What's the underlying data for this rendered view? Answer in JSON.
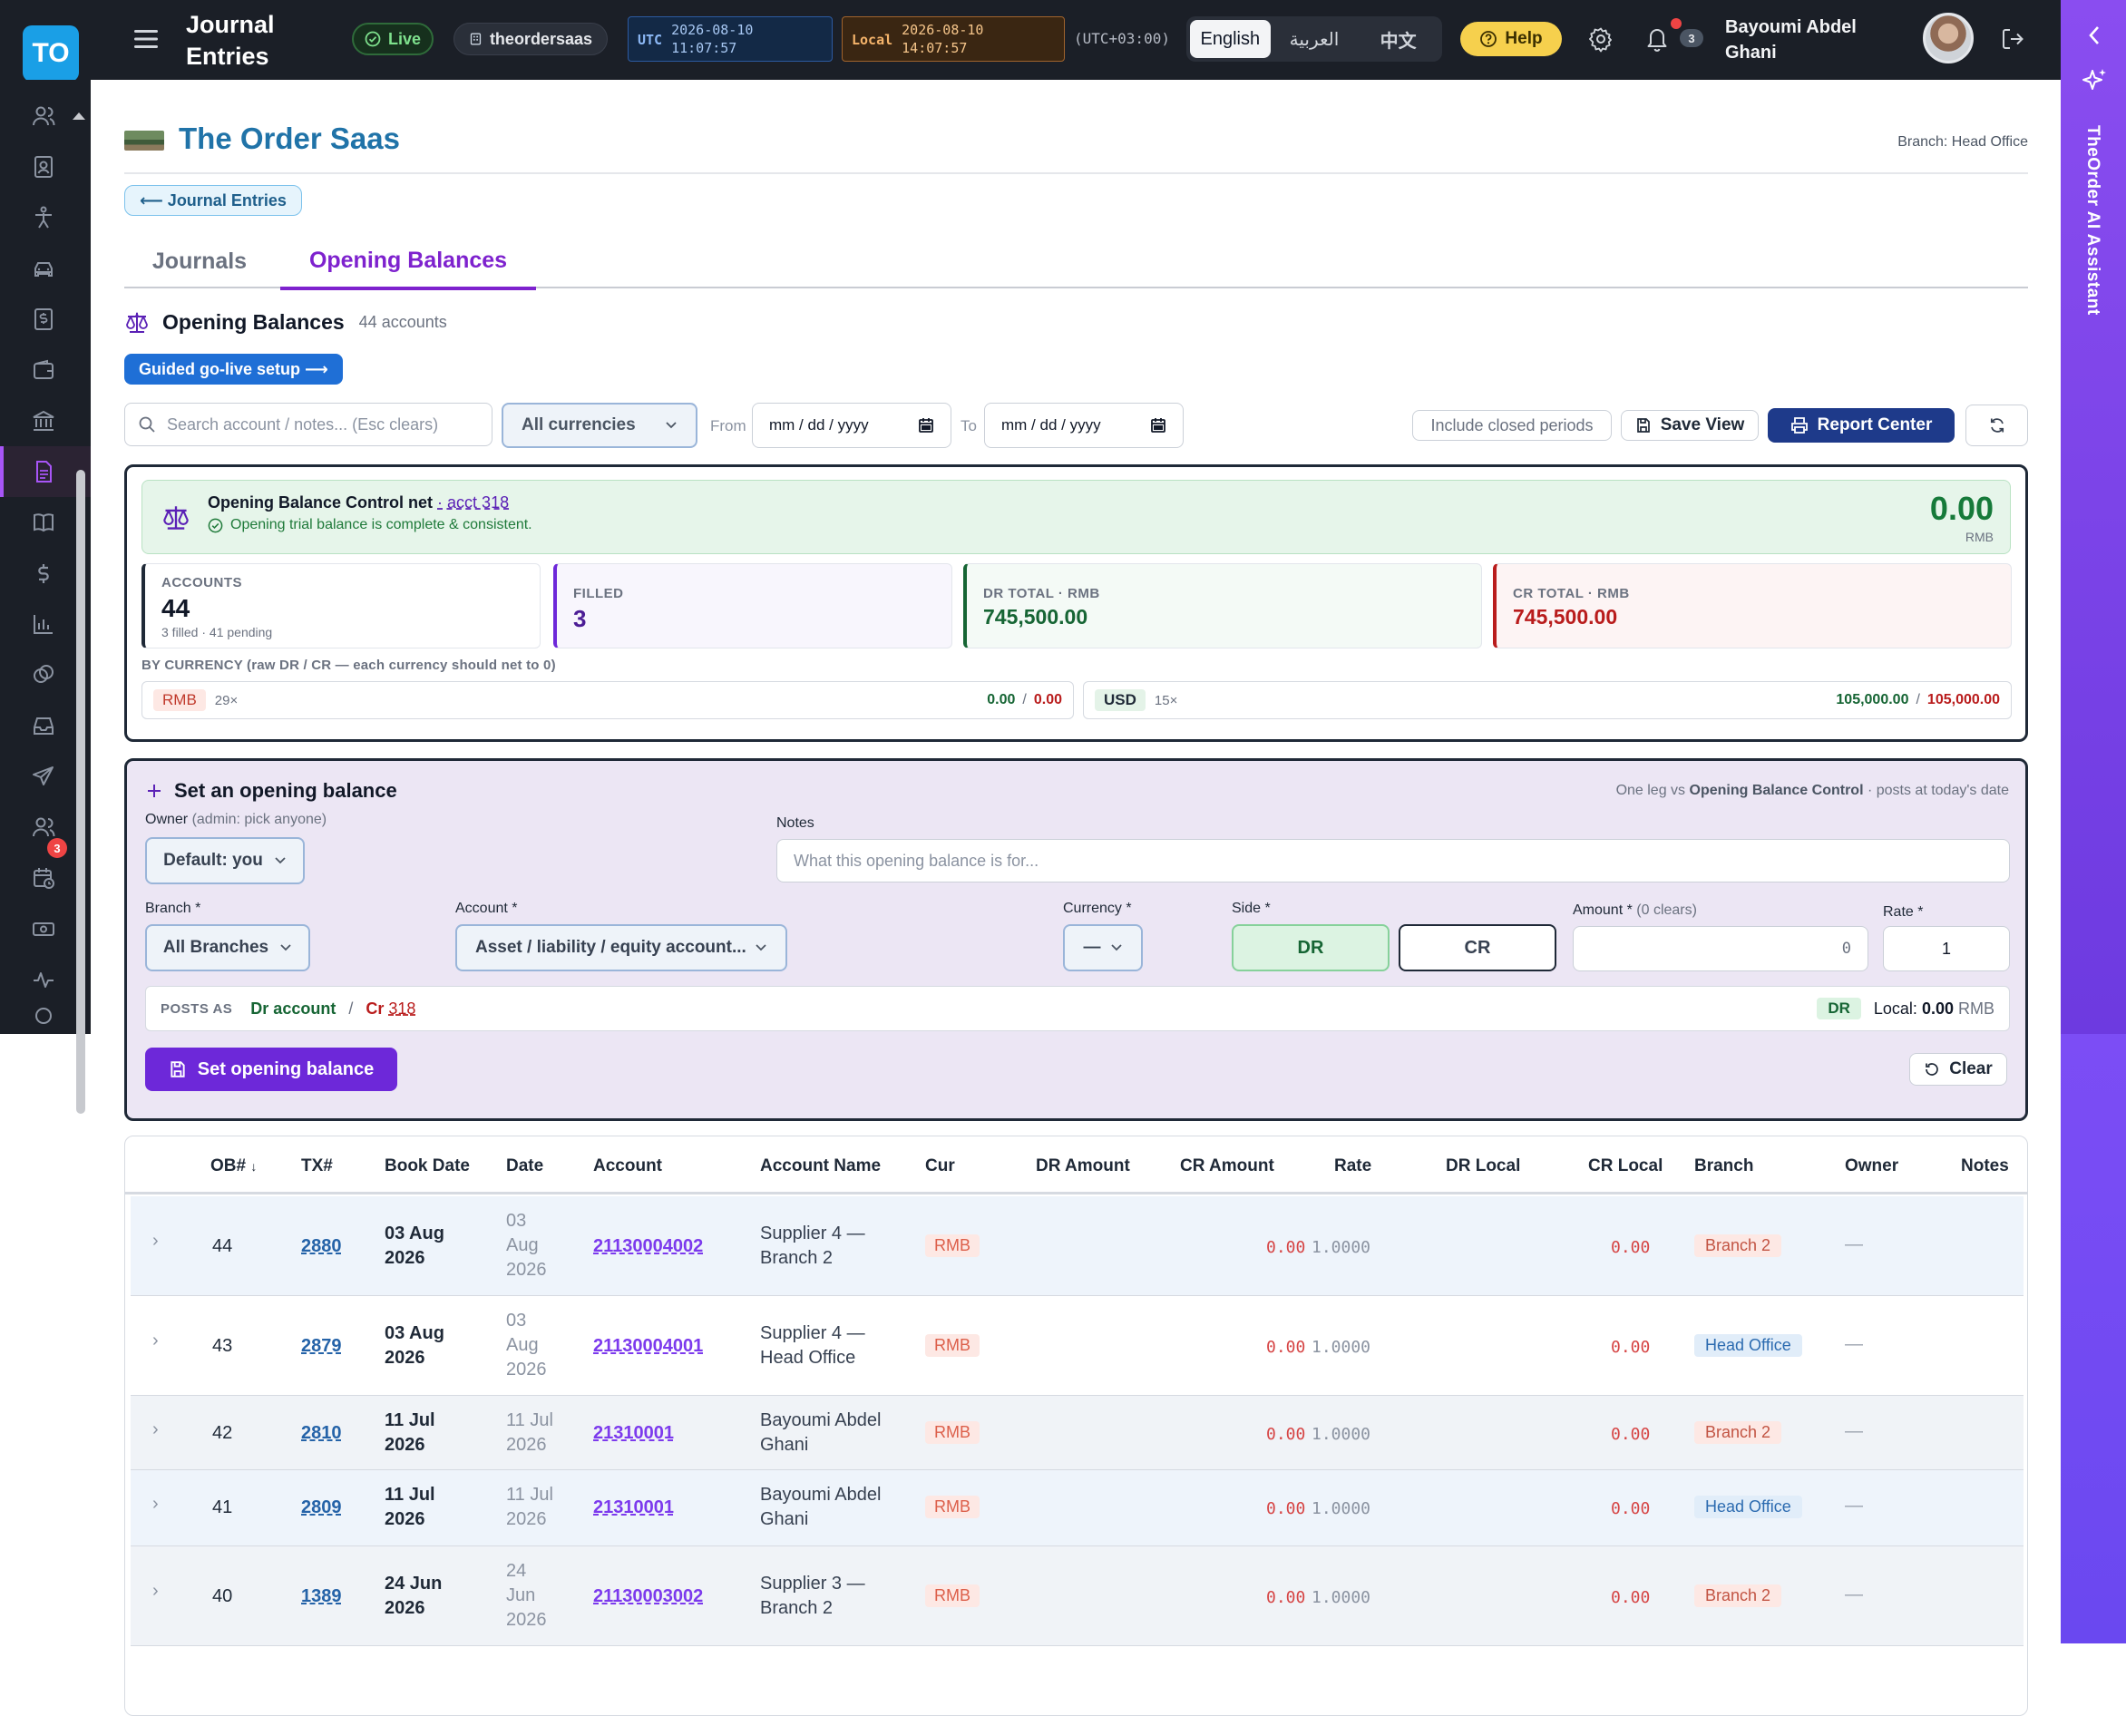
{
  "topbar": {
    "logo": "TO",
    "title_line1": "Journal",
    "title_line2": "Entries",
    "live_label": "Live",
    "tenant": "theordersaas",
    "utc_tag": "UTC",
    "utc_date": "2026-08-10",
    "utc_time": "11:07:57",
    "local_tag": "Local",
    "local_date": "2026-08-10",
    "local_time": "14:07:57",
    "tz_offset": "(UTC+03:00)",
    "languages": [
      "English",
      "العربية",
      "中文"
    ],
    "active_language": "English",
    "help_label": "Help",
    "notification_count": "3",
    "user_name_line1": "Bayoumi Abdel",
    "user_name_line2": "Ghani"
  },
  "sidebar": {
    "badge_count": "3",
    "icons": [
      "users-icon",
      "id-card-icon",
      "person-icon",
      "car-icon",
      "dollar-doc-icon",
      "wallet-icon",
      "bank-icon",
      "document-icon",
      "book-icon",
      "dollar-icon",
      "bar-chart-icon",
      "coins-icon",
      "inbox-icon",
      "send-icon",
      "team-icon",
      "calendar-clock-icon",
      "cash-icon",
      "activity-icon",
      "gear-icon"
    ]
  },
  "ai_assistant": {
    "label": "TheOrder AI Assistant"
  },
  "header": {
    "brand": "The Order Saas",
    "branch": "Branch: Head Office",
    "back_link": "⟵ Journal Entries"
  },
  "tabs": [
    {
      "label": "Journals"
    },
    {
      "label": "Opening Balances"
    }
  ],
  "section": {
    "title": "Opening Balances",
    "count": "44 accounts",
    "golive": "Guided go-live setup ⟶"
  },
  "filters": {
    "search_placeholder": "Search account / notes... (Esc clears)",
    "currency": "All currencies",
    "from_label": "From",
    "to_label": "To",
    "date_placeholder": "mm / dd / yyyy",
    "include_closed": "Include closed periods",
    "save_view": "Save View",
    "report_center": "Report Center"
  },
  "control": {
    "title": "Opening Balance Control net",
    "acct": "· acct 318",
    "status": "Opening trial balance is complete & consistent.",
    "net": "0.00",
    "net_currency": "RMB",
    "stats": {
      "accounts_label": "ACCOUNTS",
      "accounts_value": "44",
      "accounts_sub": "3 filled · 41 pending",
      "filled_label": "FILLED",
      "filled_value": "3",
      "dr_label": "DR TOTAL · RMB",
      "dr_value": "745,500.00",
      "cr_label": "CR TOTAL · RMB",
      "cr_value": "745,500.00"
    },
    "by_currency_label": "BY CURRENCY (raw DR / CR — each currency should net to 0)",
    "currencies": [
      {
        "code": "RMB",
        "count": "29×",
        "dr": "0.00",
        "cr": "0.00"
      },
      {
        "code": "USD",
        "count": "15×",
        "dr": "105,000.00",
        "cr": "105,000.00"
      }
    ]
  },
  "set_form": {
    "title": "Set an opening balance",
    "hint_pre": "One leg vs ",
    "hint_bold": "Opening Balance Control",
    "hint_post": " · posts at today's date",
    "owner_label": "Owner",
    "owner_hint": "(admin: pick anyone)",
    "owner_value": "Default: you",
    "notes_label": "Notes",
    "notes_placeholder": "What this opening balance is for...",
    "branch_label": "Branch *",
    "branch_value": "All Branches",
    "account_label": "Account *",
    "account_value": "Asset / liability / equity account...",
    "currency_label": "Currency *",
    "currency_value": "—",
    "side_label": "Side *",
    "side_dr": "DR",
    "side_cr": "CR",
    "amount_label": "Amount *",
    "amount_hint": "(0 clears)",
    "amount_value": "0",
    "rate_label": "Rate *",
    "rate_value": "1",
    "posts_as_label": "POSTS AS",
    "posts_dr": "Dr account",
    "posts_slash": "/",
    "posts_cr": "Cr",
    "posts_cr_acct": "318",
    "posts_side": "DR",
    "posts_local_label": "Local:",
    "posts_local_value": "0.00",
    "posts_local_currency": "RMB",
    "submit": "Set opening balance",
    "clear": "Clear"
  },
  "table": {
    "columns": [
      "OB#",
      "TX#",
      "Book Date",
      "Date",
      "Account",
      "Account Name",
      "Cur",
      "DR Amount",
      "CR Amount",
      "Rate",
      "DR Local",
      "CR Local",
      "Branch",
      "Owner",
      "Notes"
    ],
    "rows": [
      {
        "ob": "44",
        "tx": "2880",
        "book_date": [
          "03 Aug",
          "2026"
        ],
        "date": [
          "03",
          "Aug",
          "2026"
        ],
        "account": "21130004002",
        "name": [
          "Supplier 4 —",
          "Branch 2"
        ],
        "cur": "RMB",
        "cr_amount": "0.00",
        "rate": "1.0000",
        "cr_local": "0.00",
        "branch": "Branch 2",
        "owner": "—"
      },
      {
        "ob": "43",
        "tx": "2879",
        "book_date": [
          "03 Aug",
          "2026"
        ],
        "date": [
          "03",
          "Aug",
          "2026"
        ],
        "account": "21130004001",
        "name": [
          "Supplier 4 —",
          "Head Office"
        ],
        "cur": "RMB",
        "cr_amount": "0.00",
        "rate": "1.0000",
        "cr_local": "0.00",
        "branch": "Head Office",
        "owner": "—"
      },
      {
        "ob": "42",
        "tx": "2810",
        "book_date": [
          "11 Jul",
          "2026"
        ],
        "date": [
          "11 Jul",
          "2026"
        ],
        "account": "21310001",
        "name": [
          "Bayoumi Abdel",
          "Ghani"
        ],
        "cur": "RMB",
        "cr_amount": "0.00",
        "rate": "1.0000",
        "cr_local": "0.00",
        "branch": "Branch 2",
        "owner": "—"
      },
      {
        "ob": "41",
        "tx": "2809",
        "book_date": [
          "11 Jul",
          "2026"
        ],
        "date": [
          "11 Jul",
          "2026"
        ],
        "account": "21310001",
        "name": [
          "Bayoumi Abdel",
          "Ghani"
        ],
        "cur": "RMB",
        "cr_amount": "0.00",
        "rate": "1.0000",
        "cr_local": "0.00",
        "branch": "Head Office",
        "owner": "—"
      },
      {
        "ob": "40",
        "tx": "1389",
        "book_date": [
          "24 Jun",
          "2026"
        ],
        "date": [
          "24",
          "Jun",
          "2026"
        ],
        "account": "21130003002",
        "name": [
          "Supplier 3 —",
          "Branch 2"
        ],
        "cur": "RMB",
        "cr_amount": "0.00",
        "rate": "1.0000",
        "cr_local": "0.00",
        "branch": "Branch 2",
        "owner": "—"
      }
    ]
  }
}
